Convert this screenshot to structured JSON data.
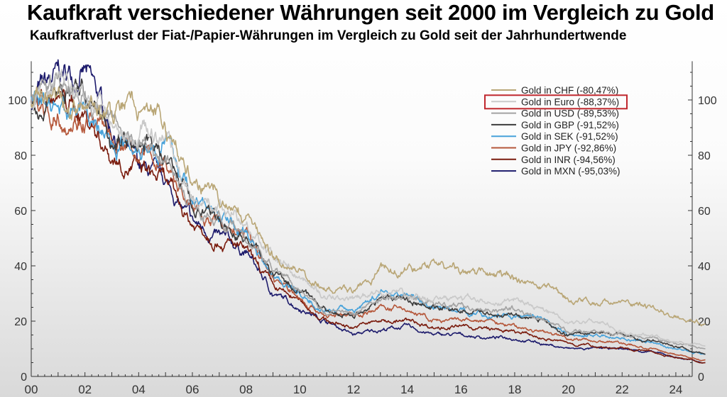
{
  "chart_data": {
    "type": "line",
    "title": "Kaufkraft verschiedener Währungen seit 2000 im Vergleich zu Gold",
    "subtitle": "Kaufkraftverlust der Fiat-/Papier-Währungen im Vergleich zu Gold seit der Jahrhundertwende",
    "xlabel": "",
    "ylabel": "",
    "xlim": [
      2000,
      2025.1
    ],
    "ylim": [
      0,
      114
    ],
    "x_ticks": [
      "00",
      "02",
      "04",
      "06",
      "08",
      "10",
      "12",
      "14",
      "16",
      "18",
      "20",
      "22",
      "24"
    ],
    "y_ticks": [
      "0",
      "20",
      "40",
      "60",
      "80",
      "100"
    ],
    "legend_position": "top-right",
    "highlighted_legend_entry": "Gold in Euro (-88,37%)",
    "x": [
      2000,
      2001,
      2002,
      2003,
      2004,
      2005,
      2006,
      2007,
      2008,
      2009,
      2010,
      2011,
      2012,
      2013,
      2014,
      2015,
      2016,
      2017,
      2018,
      2019,
      2020,
      2021,
      2022,
      2023,
      2024,
      2025
    ],
    "series": [
      {
        "name": "Gold in CHF (-80,47%)",
        "color": "#b9a676",
        "values": [
          100,
          97,
          98,
          95,
          97,
          90,
          70,
          65,
          57,
          45,
          38,
          32,
          30,
          37,
          40,
          40,
          38,
          36,
          35,
          32,
          28,
          27,
          27,
          25,
          22,
          19
        ]
      },
      {
        "name": "Gold in Euro (-88,37%)",
        "color": "#c9c9c9",
        "values": [
          100,
          106,
          103,
          93,
          90,
          87,
          65,
          60,
          55,
          42,
          36,
          28,
          27,
          30,
          30,
          28,
          27,
          28,
          27,
          24,
          20,
          20,
          17,
          15,
          13,
          11
        ]
      },
      {
        "name": "Gold in USD (-89,53%)",
        "color": "#a3a3a3",
        "values": [
          100,
          108,
          105,
          90,
          85,
          80,
          62,
          58,
          48,
          40,
          32,
          24,
          23,
          28,
          29,
          26,
          25,
          25,
          24,
          21,
          16,
          16,
          15,
          14,
          12,
          10
        ]
      },
      {
        "name": "Gold in GBP (-91,52%)",
        "color": "#3c3c3c",
        "values": [
          100,
          105,
          103,
          88,
          85,
          80,
          62,
          55,
          50,
          38,
          30,
          24,
          22,
          28,
          28,
          25,
          24,
          23,
          22,
          20,
          15,
          16,
          15,
          13,
          11,
          8
        ]
      },
      {
        "name": "Gold in SEK (-91,52%)",
        "color": "#47a2da",
        "values": [
          100,
          98,
          95,
          85,
          85,
          85,
          65,
          58,
          52,
          38,
          30,
          24,
          24,
          30,
          30,
          25,
          24,
          22,
          22,
          20,
          15,
          15,
          14,
          12,
          10,
          8
        ]
      },
      {
        "name": "Gold in JPY (-92,86%)",
        "color": "#b5573a",
        "values": [
          100,
          95,
          95,
          85,
          80,
          78,
          60,
          55,
          52,
          36,
          28,
          22,
          22,
          25,
          24,
          20,
          20,
          20,
          18,
          16,
          14,
          13,
          12,
          10,
          8,
          6
        ]
      },
      {
        "name": "Gold in INR (-94,56%)",
        "color": "#7a1c0e",
        "values": [
          100,
          100,
          95,
          80,
          75,
          70,
          55,
          50,
          45,
          32,
          27,
          20,
          18,
          20,
          20,
          18,
          18,
          17,
          16,
          14,
          12,
          11,
          10,
          9,
          7,
          5
        ]
      },
      {
        "name": "Gold in MXN (-95,03%)",
        "color": "#1d1b6c",
        "values": [
          100,
          108,
          110,
          90,
          75,
          70,
          55,
          50,
          45,
          30,
          25,
          20,
          15,
          17,
          18,
          15,
          15,
          14,
          14,
          12,
          10,
          10,
          10,
          9,
          7,
          5
        ]
      }
    ]
  },
  "highlight_color": "#c0272d"
}
